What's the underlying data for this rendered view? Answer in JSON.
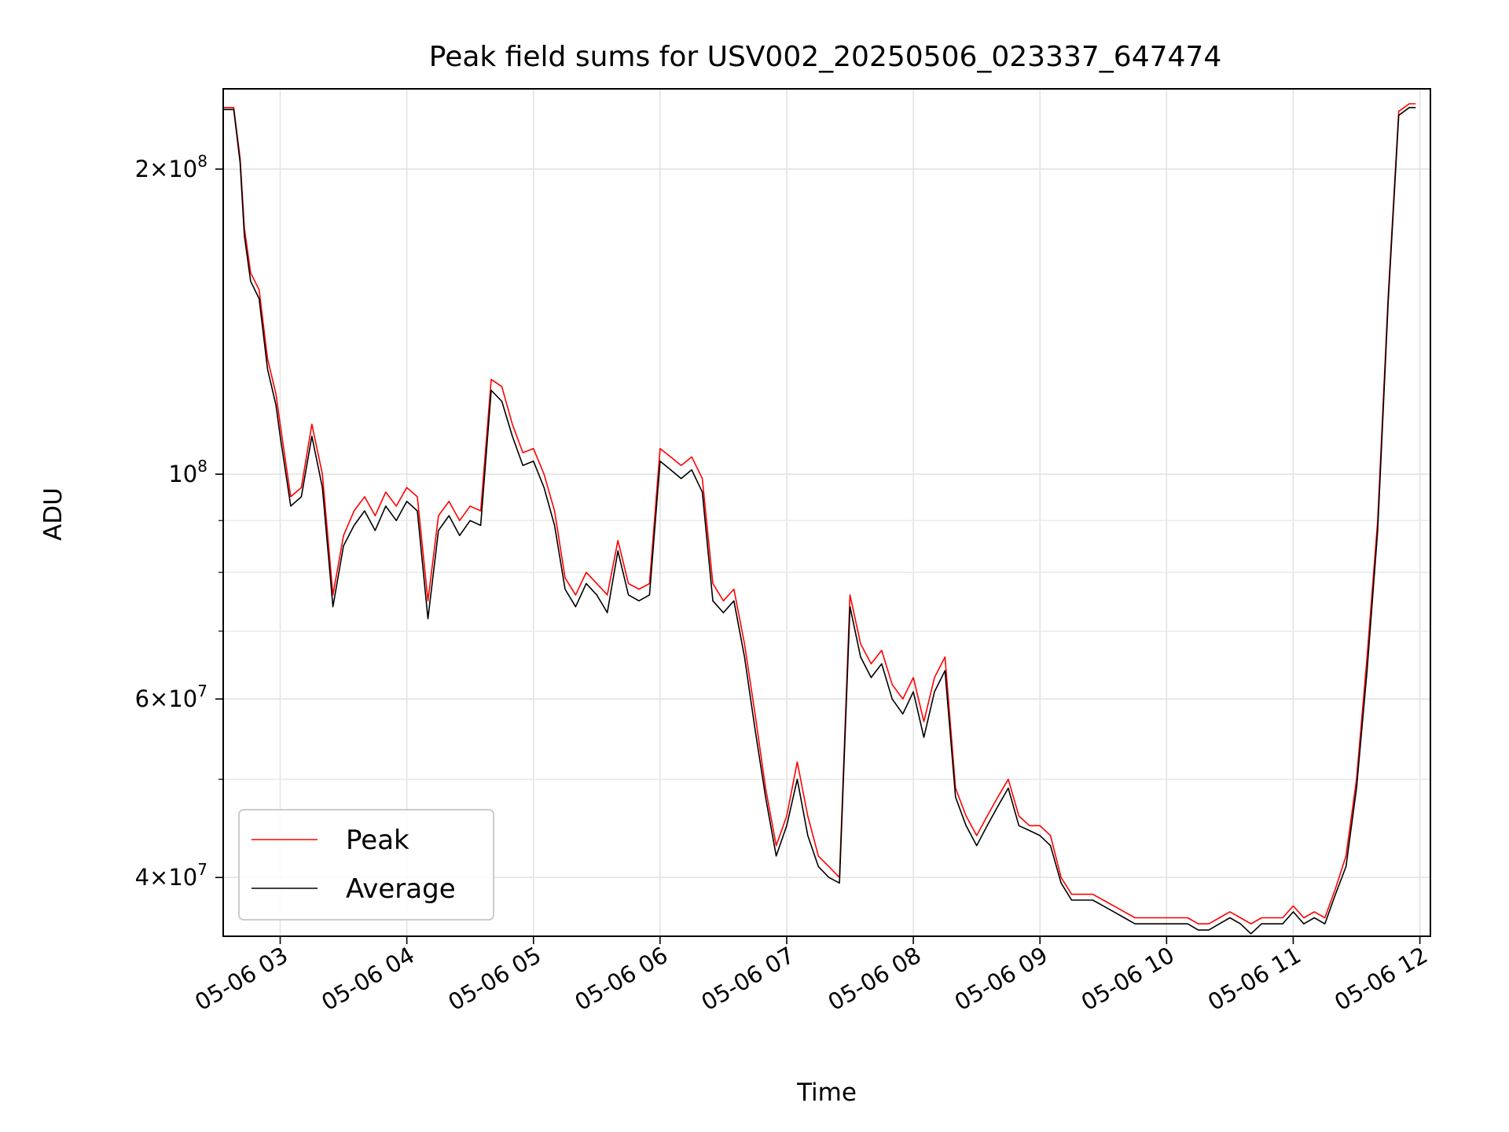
{
  "chart_data": {
    "type": "line",
    "title": "Peak field sums for USV002_20250506_023337_647474",
    "xlabel": "Time",
    "ylabel": "ADU",
    "y_scale": "log",
    "ylim": [
      35000000,
      240000000
    ],
    "xlim": [
      "05-06 02:33",
      "05-06 12:05"
    ],
    "grid": true,
    "legend_position": "lower-left",
    "x_ticks": [
      "05-06 03",
      "05-06 04",
      "05-06 05",
      "05-06 06",
      "05-06 07",
      "05-06 08",
      "05-06 09",
      "05-06 10",
      "05-06 11",
      "05-06 12"
    ],
    "y_ticks": [
      {
        "value": 40000000,
        "mant": "4",
        "exp": "7"
      },
      {
        "value": 60000000,
        "mant": "6",
        "exp": "7"
      },
      {
        "value": 100000000,
        "mant": "",
        "exp": "8"
      },
      {
        "value": 200000000,
        "mant": "2",
        "exp": "8"
      }
    ],
    "series": [
      {
        "name": "Peak",
        "color": "#ff0000",
        "x": [
          "05-06 02:33",
          "05-06 02:38",
          "05-06 02:41",
          "05-06 02:43",
          "05-06 02:46",
          "05-06 02:50",
          "05-06 02:54",
          "05-06 02:58",
          "05-06 03:00",
          "05-06 03:05",
          "05-06 03:10",
          "05-06 03:15",
          "05-06 03:20",
          "05-06 03:25",
          "05-06 03:30",
          "05-06 03:35",
          "05-06 03:40",
          "05-06 03:45",
          "05-06 03:50",
          "05-06 03:55",
          "05-06 04:00",
          "05-06 04:05",
          "05-06 04:10",
          "05-06 04:15",
          "05-06 04:20",
          "05-06 04:25",
          "05-06 04:30",
          "05-06 04:35",
          "05-06 04:40",
          "05-06 04:45",
          "05-06 04:50",
          "05-06 04:55",
          "05-06 05:00",
          "05-06 05:05",
          "05-06 05:10",
          "05-06 05:15",
          "05-06 05:20",
          "05-06 05:25",
          "05-06 05:30",
          "05-06 05:35",
          "05-06 05:40",
          "05-06 05:45",
          "05-06 05:50",
          "05-06 05:55",
          "05-06 06:00",
          "05-06 06:05",
          "05-06 06:10",
          "05-06 06:15",
          "05-06 06:20",
          "05-06 06:25",
          "05-06 06:30",
          "05-06 06:35",
          "05-06 06:40",
          "05-06 06:45",
          "05-06 06:50",
          "05-06 06:55",
          "05-06 07:00",
          "05-06 07:05",
          "05-06 07:10",
          "05-06 07:15",
          "05-06 07:20",
          "05-06 07:25",
          "05-06 07:30",
          "05-06 07:35",
          "05-06 07:40",
          "05-06 07:45",
          "05-06 07:50",
          "05-06 07:55",
          "05-06 08:00",
          "05-06 08:05",
          "05-06 08:10",
          "05-06 08:15",
          "05-06 08:20",
          "05-06 08:25",
          "05-06 08:30",
          "05-06 08:35",
          "05-06 08:40",
          "05-06 08:45",
          "05-06 08:50",
          "05-06 08:55",
          "05-06 09:00",
          "05-06 09:05",
          "05-06 09:10",
          "05-06 09:15",
          "05-06 09:20",
          "05-06 09:25",
          "05-06 09:30",
          "05-06 09:35",
          "05-06 09:40",
          "05-06 09:45",
          "05-06 09:50",
          "05-06 09:55",
          "05-06 10:00",
          "05-06 10:05",
          "05-06 10:10",
          "05-06 10:15",
          "05-06 10:20",
          "05-06 10:25",
          "05-06 10:30",
          "05-06 10:35",
          "05-06 10:40",
          "05-06 10:45",
          "05-06 10:50",
          "05-06 10:55",
          "05-06 11:00",
          "05-06 11:05",
          "05-06 11:10",
          "05-06 11:15",
          "05-06 11:20",
          "05-06 11:25",
          "05-06 11:30",
          "05-06 11:35",
          "05-06 11:40",
          "05-06 11:45",
          "05-06 11:50",
          "05-06 11:55",
          "05-06 11:58"
        ],
        "values": [
          230000000,
          230000000,
          205000000,
          175000000,
          158000000,
          152000000,
          130000000,
          120000000,
          112000000,
          95000000,
          97000000,
          112000000,
          100000000,
          76000000,
          87000000,
          92000000,
          95000000,
          91000000,
          96000000,
          93000000,
          97000000,
          95000000,
          75000000,
          91000000,
          94000000,
          90000000,
          93000000,
          92000000,
          124000000,
          122000000,
          112000000,
          105000000,
          106000000,
          100000000,
          92000000,
          79000000,
          76000000,
          80000000,
          78000000,
          76000000,
          86000000,
          78000000,
          77000000,
          78000000,
          106000000,
          104000000,
          102000000,
          104000000,
          99000000,
          78000000,
          75000000,
          77000000,
          68000000,
          58000000,
          49000000,
          43000000,
          46000000,
          52000000,
          46000000,
          42000000,
          41000000,
          40000000,
          76000000,
          68000000,
          65000000,
          67000000,
          62000000,
          60000000,
          63000000,
          57000000,
          63000000,
          66000000,
          49000000,
          46000000,
          44000000,
          46000000,
          48000000,
          50000000,
          46000000,
          45000000,
          45000000,
          44000000,
          40000000,
          38500000,
          38500000,
          38500000,
          38000000,
          37500000,
          37000000,
          36500000,
          36500000,
          36500000,
          36500000,
          36500000,
          36500000,
          36000000,
          36000000,
          36500000,
          37000000,
          36500000,
          36000000,
          36500000,
          36500000,
          36500000,
          37500000,
          36500000,
          37000000,
          36500000,
          39000000,
          42000000,
          50000000,
          66000000,
          90000000,
          150000000,
          228000000,
          232000000,
          232000000
        ]
      },
      {
        "name": "Average",
        "color": "#000000",
        "x": [
          "05-06 02:33",
          "05-06 02:38",
          "05-06 02:41",
          "05-06 02:43",
          "05-06 02:46",
          "05-06 02:50",
          "05-06 02:54",
          "05-06 02:58",
          "05-06 03:00",
          "05-06 03:05",
          "05-06 03:10",
          "05-06 03:15",
          "05-06 03:20",
          "05-06 03:25",
          "05-06 03:30",
          "05-06 03:35",
          "05-06 03:40",
          "05-06 03:45",
          "05-06 03:50",
          "05-06 03:55",
          "05-06 04:00",
          "05-06 04:05",
          "05-06 04:10",
          "05-06 04:15",
          "05-06 04:20",
          "05-06 04:25",
          "05-06 04:30",
          "05-06 04:35",
          "05-06 04:40",
          "05-06 04:45",
          "05-06 04:50",
          "05-06 04:55",
          "05-06 05:00",
          "05-06 05:05",
          "05-06 05:10",
          "05-06 05:15",
          "05-06 05:20",
          "05-06 05:25",
          "05-06 05:30",
          "05-06 05:35",
          "05-06 05:40",
          "05-06 05:45",
          "05-06 05:50",
          "05-06 05:55",
          "05-06 06:00",
          "05-06 06:05",
          "05-06 06:10",
          "05-06 06:15",
          "05-06 06:20",
          "05-06 06:25",
          "05-06 06:30",
          "05-06 06:35",
          "05-06 06:40",
          "05-06 06:45",
          "05-06 06:50",
          "05-06 06:55",
          "05-06 07:00",
          "05-06 07:05",
          "05-06 07:10",
          "05-06 07:15",
          "05-06 07:20",
          "05-06 07:25",
          "05-06 07:30",
          "05-06 07:35",
          "05-06 07:40",
          "05-06 07:45",
          "05-06 07:50",
          "05-06 07:55",
          "05-06 08:00",
          "05-06 08:05",
          "05-06 08:10",
          "05-06 08:15",
          "05-06 08:20",
          "05-06 08:25",
          "05-06 08:30",
          "05-06 08:35",
          "05-06 08:40",
          "05-06 08:45",
          "05-06 08:50",
          "05-06 08:55",
          "05-06 09:00",
          "05-06 09:05",
          "05-06 09:10",
          "05-06 09:15",
          "05-06 09:20",
          "05-06 09:25",
          "05-06 09:30",
          "05-06 09:35",
          "05-06 09:40",
          "05-06 09:45",
          "05-06 09:50",
          "05-06 09:55",
          "05-06 10:00",
          "05-06 10:05",
          "05-06 10:10",
          "05-06 10:15",
          "05-06 10:20",
          "05-06 10:25",
          "05-06 10:30",
          "05-06 10:35",
          "05-06 10:40",
          "05-06 10:45",
          "05-06 10:50",
          "05-06 10:55",
          "05-06 11:00",
          "05-06 11:05",
          "05-06 11:10",
          "05-06 11:15",
          "05-06 11:20",
          "05-06 11:25",
          "05-06 11:30",
          "05-06 11:35",
          "05-06 11:40",
          "05-06 11:45",
          "05-06 11:50",
          "05-06 11:55",
          "05-06 11:58"
        ],
        "values": [
          229000000,
          229000000,
          203000000,
          172000000,
          155000000,
          149000000,
          127000000,
          117000000,
          109000000,
          93000000,
          95000000,
          109000000,
          97000000,
          74000000,
          85000000,
          89000000,
          92000000,
          88000000,
          93000000,
          90000000,
          94000000,
          92000000,
          72000000,
          88000000,
          91000000,
          87000000,
          90000000,
          89000000,
          121000000,
          118000000,
          109000000,
          102000000,
          103000000,
          97000000,
          89000000,
          77000000,
          74000000,
          78000000,
          76000000,
          73000000,
          84000000,
          76000000,
          75000000,
          76000000,
          103000000,
          101000000,
          99000000,
          101000000,
          96000000,
          75000000,
          73000000,
          75000000,
          66000000,
          56000000,
          48000000,
          42000000,
          45000000,
          50000000,
          44000000,
          41000000,
          40000000,
          39500000,
          74000000,
          66000000,
          63000000,
          65000000,
          60000000,
          58000000,
          61000000,
          55000000,
          61000000,
          64000000,
          48000000,
          45000000,
          43000000,
          45000000,
          47000000,
          49000000,
          45000000,
          44500000,
          44000000,
          43000000,
          39500000,
          38000000,
          38000000,
          38000000,
          37500000,
          37000000,
          36500000,
          36000000,
          36000000,
          36000000,
          36000000,
          36000000,
          36000000,
          35500000,
          35500000,
          36000000,
          36500000,
          36000000,
          35200000,
          36000000,
          36000000,
          36000000,
          37000000,
          36000000,
          36500000,
          36000000,
          38500000,
          41000000,
          49000000,
          64000000,
          88000000,
          148000000,
          226000000,
          230000000,
          230000000
        ]
      }
    ]
  }
}
